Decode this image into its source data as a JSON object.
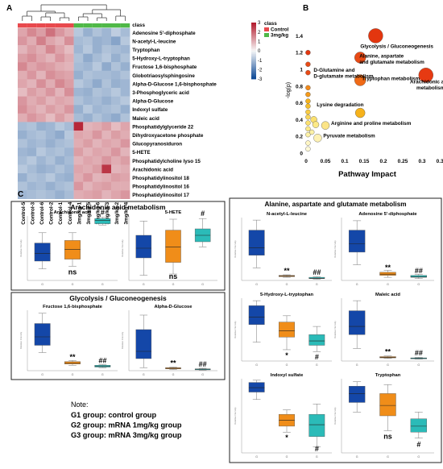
{
  "panel_labels": {
    "a": "A",
    "b": "B",
    "c": "C"
  },
  "chart_data": [
    {
      "type": "heatmap",
      "rows": [
        "class",
        "Adenosine 5'-diphosphate",
        "N-acetyl-L-leucine",
        "Tryptophan",
        "5-Hydroxy-L-tryptophan",
        "Fructose 1,6-bisphosphate",
        "Globotriaosylsphingosine",
        "Alpha-D-Glucose 1,6-bisphosphate",
        "3-Phosphoglyceric acid",
        "Alpha-D-Glucose",
        "Indoxyl sulfate",
        "Maleic acid",
        "Phosphatidylglyceride 22",
        "Dihydroxyacetone phosphate",
        "Glucopyranosiduron",
        "5-HETE",
        "Phosphatidylcholine lyso 15",
        "Arachidonic acid",
        "Phosphatidylinositol 18",
        "Phosphatidylinositol 16",
        "Phosphatidylinositol 17"
      ],
      "columns": [
        "Control-5",
        "Control-3",
        "Control-6",
        "Control-2",
        "Control-1",
        "Control-4",
        "3mg/kg-1",
        "3mg/kg-5",
        "3mg/kg-6",
        "3mg/kg-3",
        "3mg/kg-2",
        "3mg/kg-4"
      ],
      "legend": {
        "title": "class",
        "entries": [
          "Control",
          "3mg/kg"
        ],
        "colors": [
          "#e8494d",
          "#4fb848"
        ]
      },
      "colorbar": {
        "ticks": [
          "3",
          "2",
          "1",
          "0",
          "-1",
          "-2",
          "-3"
        ],
        "range": [
          -3,
          3
        ]
      },
      "values": [
        [
          1.1,
          1.5,
          1.2,
          1.8,
          1.3,
          1.0,
          -0.8,
          -1.2,
          -0.9,
          -1.1,
          -0.7,
          -1.0
        ],
        [
          1.3,
          1.0,
          1.6,
          1.1,
          0.9,
          1.4,
          -1.0,
          -0.9,
          -1.2,
          -1.1,
          -1.4,
          -0.8
        ],
        [
          0.9,
          1.2,
          1.0,
          1.5,
          1.1,
          0.8,
          -1.1,
          -0.8,
          -1.2,
          -0.9,
          -1.0,
          -1.1
        ],
        [
          1.2,
          1.4,
          1.1,
          0.9,
          1.3,
          1.0,
          -0.9,
          -1.3,
          -1.0,
          -0.8,
          -1.2,
          -0.9
        ],
        [
          1.5,
          1.1,
          1.3,
          1.2,
          1.0,
          0.9,
          -1.0,
          -1.1,
          -0.8,
          -1.3,
          -0.9,
          -1.2
        ],
        [
          1.0,
          1.3,
          0.9,
          1.4,
          1.2,
          1.1,
          -1.2,
          -0.9,
          -1.0,
          -1.0,
          -1.1,
          -0.9
        ],
        [
          1.1,
          0.9,
          1.4,
          1.0,
          1.5,
          1.2,
          -0.8,
          -1.0,
          -1.3,
          -0.9,
          -1.2,
          -1.1
        ],
        [
          0.8,
          1.2,
          1.0,
          1.3,
          0.9,
          1.4,
          -1.1,
          -1.2,
          -0.9,
          -1.0,
          -0.8,
          -1.1
        ],
        [
          1.3,
          1.0,
          1.2,
          0.9,
          1.1,
          1.0,
          -0.9,
          -1.1,
          -1.0,
          -1.2,
          -1.0,
          -0.8
        ],
        [
          1.4,
          1.1,
          0.9,
          1.2,
          1.0,
          1.3,
          -1.2,
          -0.8,
          -1.1,
          -1.0,
          -0.9,
          -1.2
        ],
        [
          1.0,
          1.3,
          1.1,
          0.8,
          1.2,
          0.9,
          -1.0,
          -1.2,
          -0.9,
          -1.1,
          -1.3,
          -0.9
        ],
        [
          -1.0,
          -0.9,
          -1.2,
          -1.1,
          -0.8,
          -1.0,
          2.8,
          0.9,
          1.0,
          1.2,
          0.8,
          1.1
        ],
        [
          -1.2,
          -1.0,
          -0.9,
          -1.1,
          -1.3,
          -0.8,
          1.1,
          1.0,
          1.3,
          0.9,
          1.2,
          1.0
        ],
        [
          -0.9,
          -1.1,
          -1.0,
          -1.2,
          -1.0,
          -0.9,
          1.0,
          1.2,
          0.9,
          1.1,
          1.0,
          1.3
        ],
        [
          -1.1,
          -1.2,
          -0.8,
          -1.0,
          -0.9,
          -1.1,
          1.2,
          0.9,
          1.1,
          1.0,
          1.3,
          0.9
        ],
        [
          -1.0,
          -0.8,
          -1.1,
          -0.9,
          -1.2,
          -1.0,
          0.9,
          1.1,
          1.0,
          1.3,
          1.0,
          1.2
        ],
        [
          -0.8,
          -1.0,
          -1.2,
          -1.1,
          -0.9,
          -1.1,
          1.1,
          1.0,
          1.2,
          2.6,
          0.9,
          1.0
        ],
        [
          -1.2,
          -0.9,
          -1.0,
          -0.8,
          -1.1,
          -1.2,
          1.0,
          1.3,
          0.9,
          1.0,
          1.2,
          1.1
        ],
        [
          -0.9,
          -1.1,
          -1.0,
          -1.2,
          -1.0,
          -0.9,
          1.3,
          0.9,
          1.1,
          1.2,
          1.0,
          1.0
        ],
        [
          -1.1,
          -1.0,
          -0.9,
          -1.0,
          -1.2,
          -1.0,
          1.0,
          1.1,
          1.2,
          0.9,
          1.1,
          1.3
        ]
      ]
    },
    {
      "type": "scatter",
      "xlabel": "Pathway Impact",
      "ylabel": "-log(p)",
      "xlim": [
        0,
        0.35
      ],
      "ylim": [
        0,
        1.5
      ],
      "xticks": [
        "0",
        "0.05",
        "0.1",
        "0.15",
        "0.2",
        "0.25",
        "0.3",
        "0.35"
      ],
      "yticks": [
        "0",
        "0.2",
        "0.4",
        "0.6",
        "0.8",
        "1",
        "1.2",
        "1.4"
      ],
      "points": [
        {
          "x": 0.18,
          "y": 1.4,
          "r": 9,
          "color": "#e3360f",
          "label": "Glycolysis / Gluconeogenesis"
        },
        {
          "x": 0.14,
          "y": 1.14,
          "r": 7,
          "color": "#e84a15",
          "label": "Alanine, aspartate\nand glutamate metabolism"
        },
        {
          "x": 0.14,
          "y": 0.87,
          "r": 7,
          "color": "#f06a16",
          "label": "Tryptophan metabolism"
        },
        {
          "x": 0.31,
          "y": 0.93,
          "r": 9,
          "color": "#e63a12",
          "label": "Arachidonic acid\nmetabolism"
        },
        {
          "x": 0.14,
          "y": 0.48,
          "r": 6,
          "color": "#f6b21b",
          "label": "Lysine degradation"
        },
        {
          "x": 0.05,
          "y": 0.33,
          "r": 5,
          "color": "#fbe487",
          "label": "Arginine and proline metabolism"
        },
        {
          "x": 0.03,
          "y": 0.18,
          "r": 5,
          "color": "#fdf1b3",
          "label": "Pyruvate metabolism"
        },
        {
          "x": 0.005,
          "y": 0.96,
          "r": 3,
          "color": "#e84a15",
          "label": "D-Glutamine and\nD-glutamate metabolism"
        },
        {
          "x": 0.005,
          "y": 1.2,
          "r": 3,
          "color": "#e3360f",
          "label": ""
        },
        {
          "x": 0.005,
          "y": 1.06,
          "r": 3,
          "color": "#e84a15",
          "label": ""
        },
        {
          "x": 0.005,
          "y": 0.78,
          "r": 3,
          "color": "#f28a1b",
          "label": ""
        },
        {
          "x": 0.005,
          "y": 0.7,
          "r": 3,
          "color": "#f49a1b",
          "label": ""
        },
        {
          "x": 0.005,
          "y": 0.62,
          "r": 3,
          "color": "#f6b21b",
          "label": ""
        },
        {
          "x": 0.005,
          "y": 0.56,
          "r": 3,
          "color": "#f8c02a",
          "label": ""
        },
        {
          "x": 0.005,
          "y": 0.49,
          "r": 3,
          "color": "#f9cc44",
          "label": ""
        },
        {
          "x": 0.005,
          "y": 0.43,
          "r": 3,
          "color": "#fad658",
          "label": ""
        },
        {
          "x": 0.005,
          "y": 0.36,
          "r": 3,
          "color": "#fbe06e",
          "label": ""
        },
        {
          "x": 0.005,
          "y": 0.29,
          "r": 3,
          "color": "#fce987",
          "label": ""
        },
        {
          "x": 0.005,
          "y": 0.22,
          "r": 3,
          "color": "#fdf1a6",
          "label": ""
        },
        {
          "x": 0.005,
          "y": 0.12,
          "r": 3,
          "color": "#fef6c4",
          "label": ""
        },
        {
          "x": 0.005,
          "y": 0.05,
          "r": 3,
          "color": "#fef9d8",
          "label": ""
        },
        {
          "x": 0.02,
          "y": 0.4,
          "r": 4,
          "color": "#fbe06e",
          "label": ""
        },
        {
          "x": 0.025,
          "y": 0.34,
          "r": 4,
          "color": "#fce987",
          "label": ""
        },
        {
          "x": 0.015,
          "y": 0.25,
          "r": 3,
          "color": "#fdf1a6",
          "label": ""
        }
      ]
    },
    {
      "type": "boxplot",
      "title": "Arachidonic acid metabolism",
      "groups": [
        "G1",
        "G2",
        "G3"
      ],
      "xtick": "G",
      "ylabel": "Relative Intensity",
      "colors": [
        "#1447a8",
        "#f08d19",
        "#2bbbb8"
      ],
      "plots": [
        {
          "name": "Arachidonic acid",
          "marks": [
            "",
            "ns",
            "#"
          ],
          "boxes": [
            {
              "min": 0.18,
              "q1": 0.3,
              "med": 0.42,
              "q3": 0.58,
              "max": 0.74
            },
            {
              "min": 0.22,
              "q1": 0.33,
              "med": 0.48,
              "q3": 0.62,
              "max": 0.74
            },
            {
              "min": 0.86,
              "q1": 0.88,
              "med": 0.93,
              "q3": 0.96,
              "max": 0.98
            }
          ]
        },
        {
          "name": "5-HETE",
          "marks": [
            "",
            "ns",
            "#"
          ],
          "boxes": [
            {
              "min": 0.08,
              "q1": 0.35,
              "med": 0.5,
              "q3": 0.7,
              "max": 0.92
            },
            {
              "min": 0.1,
              "q1": 0.28,
              "med": 0.52,
              "q3": 0.78,
              "max": 0.95
            },
            {
              "min": 0.52,
              "q1": 0.6,
              "med": 0.7,
              "q3": 0.8,
              "max": 0.96
            }
          ]
        }
      ]
    },
    {
      "type": "boxplot",
      "title": "Glycolysis / Gluconeogenesis",
      "groups": [
        "G1",
        "G2",
        "G3"
      ],
      "xtick": "G",
      "ylabel": "Relative Intensity",
      "colors": [
        "#1447a8",
        "#f08d19",
        "#2bbbb8"
      ],
      "plots": [
        {
          "name": "Fructose 1,6-bisphosphate",
          "marks": [
            "",
            "**",
            "##"
          ],
          "boxes": [
            {
              "min": 0.3,
              "q1": 0.42,
              "med": 0.56,
              "q3": 0.78,
              "max": 0.95
            },
            {
              "min": 0.09,
              "q1": 0.11,
              "med": 0.13,
              "q3": 0.15,
              "max": 0.17
            },
            {
              "min": 0.05,
              "q1": 0.06,
              "med": 0.07,
              "q3": 0.09,
              "max": 0.1
            }
          ]
        },
        {
          "name": "Alpha-D-Glucose",
          "marks": [
            "",
            "**",
            "##"
          ],
          "boxes": [
            {
              "min": 0.05,
              "q1": 0.2,
              "med": 0.32,
              "q3": 0.68,
              "max": 0.92
            },
            {
              "min": 0.02,
              "q1": 0.03,
              "med": 0.04,
              "q3": 0.05,
              "max": 0.06
            },
            {
              "min": 0.01,
              "q1": 0.02,
              "med": 0.025,
              "q3": 0.03,
              "max": 0.04
            }
          ]
        }
      ]
    },
    {
      "type": "boxplot",
      "title": "Alanine, aspartate and glutamate metabolism",
      "groups": [
        "G1",
        "G2",
        "G3"
      ],
      "xtick": "G",
      "ylabel": "Relative Intensity",
      "colors": [
        "#1447a8",
        "#f08d19",
        "#2bbbb8"
      ],
      "plots": [
        {
          "name": "N-acetyl-L-leucine",
          "marks": [
            "",
            "**",
            "##"
          ],
          "boxes": [
            {
              "min": 0.2,
              "q1": 0.4,
              "med": 0.52,
              "q3": 0.8,
              "max": 0.96
            },
            {
              "min": 0.05,
              "q1": 0.06,
              "med": 0.07,
              "q3": 0.08,
              "max": 0.09
            },
            {
              "min": 0.02,
              "q1": 0.03,
              "med": 0.035,
              "q3": 0.05,
              "max": 0.06
            }
          ]
        },
        {
          "name": "Adenosine 5'-diphosphate",
          "marks": [
            "",
            "**",
            "##"
          ],
          "boxes": [
            {
              "min": 0.25,
              "q1": 0.45,
              "med": 0.58,
              "q3": 0.8,
              "max": 0.95
            },
            {
              "min": 0.05,
              "q1": 0.08,
              "med": 0.1,
              "q3": 0.13,
              "max": 0.16
            },
            {
              "min": 0.03,
              "q1": 0.05,
              "med": 0.06,
              "q3": 0.08,
              "max": 0.1
            }
          ]
        },
        {
          "name": "5-Hydroxy-L-tryptophan",
          "marks": [
            "",
            "*",
            "#"
          ],
          "boxes": [
            {
              "min": 0.3,
              "q1": 0.58,
              "med": 0.7,
              "q3": 0.88,
              "max": 0.96
            },
            {
              "min": 0.18,
              "q1": 0.38,
              "med": 0.48,
              "q3": 0.62,
              "max": 0.72
            },
            {
              "min": 0.15,
              "q1": 0.25,
              "med": 0.32,
              "q3": 0.42,
              "max": 0.55
            }
          ]
        },
        {
          "name": "Maleic acid",
          "marks": [
            "",
            "**",
            "##"
          ],
          "boxes": [
            {
              "min": 0.2,
              "q1": 0.42,
              "med": 0.55,
              "q3": 0.8,
              "max": 0.96
            },
            {
              "min": 0.04,
              "q1": 0.05,
              "med": 0.06,
              "q3": 0.07,
              "max": 0.08
            },
            {
              "min": 0.03,
              "q1": 0.04,
              "med": 0.045,
              "q3": 0.05,
              "max": 0.06
            }
          ]
        },
        {
          "name": "Indoxyl sulfate",
          "marks": [
            "",
            "*",
            "#"
          ],
          "boxes": [
            {
              "min": 0.72,
              "q1": 0.82,
              "med": 0.88,
              "q3": 0.95,
              "max": 0.98
            },
            {
              "min": 0.28,
              "q1": 0.36,
              "med": 0.44,
              "q3": 0.52,
              "max": 0.58
            },
            {
              "min": 0.08,
              "q1": 0.22,
              "med": 0.38,
              "q3": 0.52,
              "max": 0.66
            }
          ]
        },
        {
          "name": "Tryptophan",
          "marks": [
            "",
            "ns",
            "#"
          ],
          "boxes": [
            {
              "min": 0.55,
              "q1": 0.68,
              "med": 0.8,
              "q3": 0.9,
              "max": 0.96
            },
            {
              "min": 0.3,
              "q1": 0.5,
              "med": 0.64,
              "q3": 0.8,
              "max": 0.92
            },
            {
              "min": 0.2,
              "q1": 0.28,
              "med": 0.36,
              "q3": 0.46,
              "max": 0.55
            }
          ]
        }
      ]
    }
  ],
  "note": {
    "title": "Note:",
    "lines": [
      "G1 group: control group",
      "G2 group: mRNA 1mg/kg group",
      "G3 group: mRNA 3mg/kg group"
    ]
  }
}
